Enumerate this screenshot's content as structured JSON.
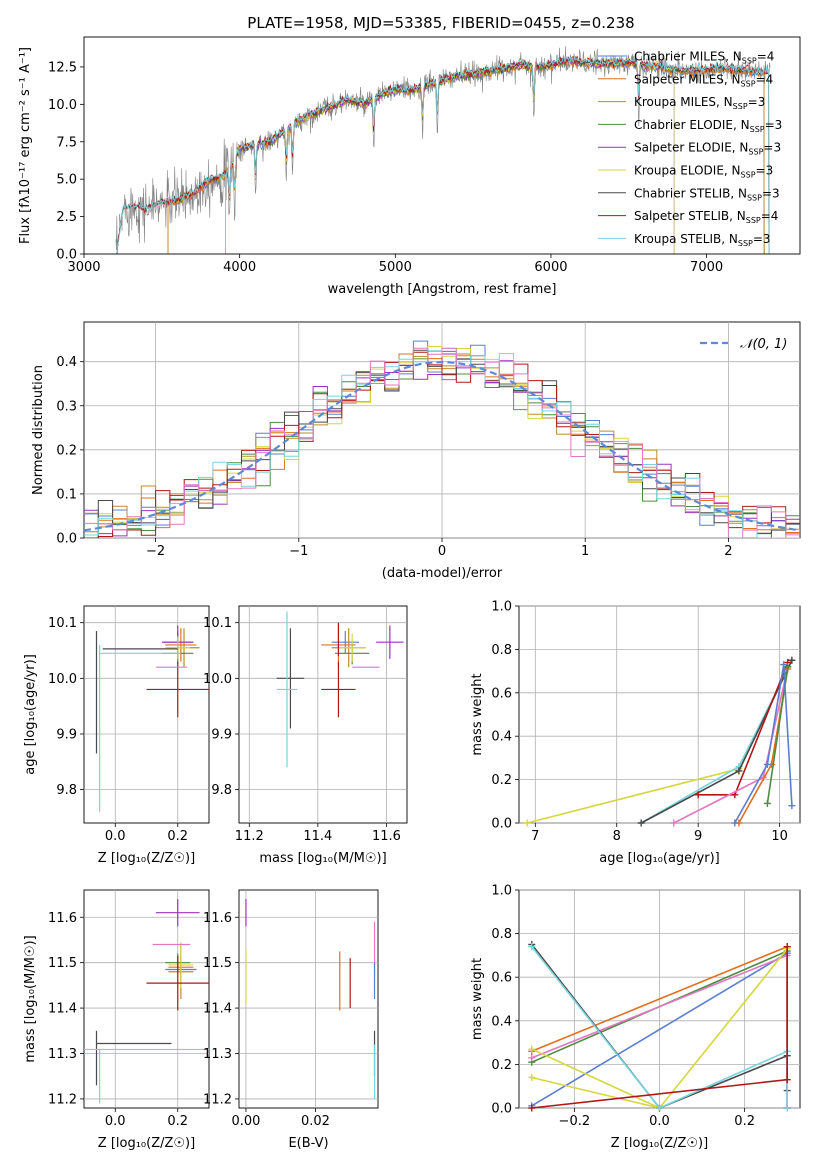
{
  "figure": {
    "title": "PLATE=1958, MJD=53385, FIBERID=0455, z=0.238"
  },
  "chart_data": [
    {
      "id": "spectrum",
      "type": "line",
      "xlabel": "wavelength [Angstrom, rest frame]",
      "ylabel": "Flux [fλ10⁻¹⁷ erg cm⁻² s⁻¹ A⁻¹]",
      "xlim": [
        3000,
        7600
      ],
      "ylim": [
        0,
        14.5
      ],
      "xticks": [
        3000,
        4000,
        5000,
        6000,
        7000
      ],
      "yticks": [
        0.0,
        2.5,
        5.0,
        7.5,
        10.0,
        12.5
      ],
      "grid": false,
      "legend_position": "top-right",
      "data_trend": {
        "x": [
          3210,
          3250,
          3300,
          3400,
          3500,
          3600,
          3700,
          3800,
          3900,
          3950,
          4000,
          4100,
          4200,
          4300,
          4400,
          4500,
          4600,
          4700,
          4800,
          4900,
          5000,
          5100,
          5200,
          5300,
          5400,
          5500,
          5600,
          5700,
          5800,
          5900,
          6000,
          6100,
          6200,
          6300,
          6400,
          6500,
          6600,
          6700,
          6800,
          6900,
          7000,
          7100,
          7200,
          7300,
          7400
        ],
        "y": [
          0.0,
          2.9,
          3.2,
          3.0,
          3.4,
          3.6,
          4.0,
          4.9,
          5.2,
          6.0,
          7.0,
          7.3,
          7.5,
          8.3,
          9.0,
          9.5,
          9.9,
          10.3,
          10.0,
          10.6,
          11.0,
          10.9,
          11.3,
          11.6,
          11.9,
          12.0,
          12.2,
          12.4,
          12.6,
          12.5,
          12.6,
          12.9,
          12.8,
          12.7,
          12.7,
          12.8,
          12.6,
          12.5,
          12.3,
          12.2,
          12.3,
          12.4,
          12.3,
          12.2,
          12.1
        ]
      },
      "series": [
        {
          "name": "Chabrier MILES, N",
          "sub": "SSP",
          "suffix": "=4",
          "color": "#5a7fd0",
          "start": 3540,
          "end": 7370
        },
        {
          "name": "Salpeter MILES, N",
          "sub": "SSP",
          "suffix": "=4",
          "color": "#e07020",
          "start": 3540,
          "end": 7370
        },
        {
          "name": "Kroupa MILES, N",
          "sub": "SSP",
          "suffix": "=3",
          "color": "#c08a2a",
          "start": 3540,
          "end": 7370
        },
        {
          "name": "Chabrier ELODIE, N",
          "sub": "SSP",
          "suffix": "=3",
          "color": "#4d8b40",
          "start": 3910,
          "end": 6790
        },
        {
          "name": "Salpeter ELODIE, N",
          "sub": "SSP",
          "suffix": "=3",
          "color": "#9b32c0",
          "start": 3910,
          "end": 6790
        },
        {
          "name": "Kroupa ELODIE, N",
          "sub": "SSP",
          "suffix": "=3",
          "color": "#d6d640",
          "start": 3910,
          "end": 6790
        },
        {
          "name": "Chabrier STELIB, N",
          "sub": "SSP",
          "suffix": "=3",
          "color": "#4a4a4a",
          "start": 3210,
          "end": 7400
        },
        {
          "name": "Salpeter STELIB, N",
          "sub": "SSP",
          "suffix": "=4",
          "color": "#b01818",
          "start": 3210,
          "end": 7400
        },
        {
          "name": "Kroupa STELIB, N",
          "sub": "SSP",
          "suffix": "=3",
          "color": "#79d3df",
          "start": 3210,
          "end": 7400
        }
      ],
      "observed_data_color": "#808080"
    },
    {
      "id": "residual-histogram",
      "type": "step",
      "xlabel": "(data-model)/error",
      "ylabel": "Normed distribution",
      "xlim": [
        -2.5,
        2.5
      ],
      "ylim": [
        0,
        0.49
      ],
      "xticks": [
        -2,
        -1,
        0,
        1,
        2
      ],
      "yticks": [
        0.0,
        0.1,
        0.2,
        0.3,
        0.4
      ],
      "grid": true,
      "legend_position": "top-right",
      "reference_curve": {
        "label": "𝒩(0, 1)",
        "color": "#5a8ad8",
        "mean": 0,
        "sigma": 1
      },
      "bin_edges": {
        "start": -2.5,
        "width": 0.1,
        "count": 50
      }
    },
    {
      "id": "age-vs-Z",
      "type": "errorbar",
      "xlabel": "Z [log₁₀(Z/Z☉)]",
      "ylabel": "age  [log₁₀(age/yr)]",
      "xlim": [
        -0.1,
        0.3
      ],
      "ylim": [
        9.74,
        10.13
      ],
      "xticks": [
        0.0,
        0.2
      ],
      "yticks": [
        9.8,
        9.9,
        10.0,
        10.1
      ],
      "grid": true,
      "points": [
        {
          "x": 0.2,
          "y": 10.065,
          "xerr": 0.05,
          "yerr": 0.02,
          "color": "#5a7fd0"
        },
        {
          "x": 0.21,
          "y": 10.06,
          "xerr": 0.05,
          "yerr": 0.03,
          "color": "#e07020"
        },
        {
          "x": 0.22,
          "y": 10.055,
          "xerr": 0.05,
          "yerr": 0.035,
          "color": "#c08a2a"
        },
        {
          "x": 0.2,
          "y": 10.045,
          "xerr": 0.05,
          "yerr": 0.02,
          "color": "#4d8b40"
        },
        {
          "x": 0.2,
          "y": 10.065,
          "xerr": 0.05,
          "yerr": 0.03,
          "color": "#9b32c0"
        },
        {
          "x": 0.2,
          "y": 10.055,
          "xerr": 0.04,
          "yerr": 0.02,
          "color": "#d6d640"
        },
        {
          "x": -0.06,
          "y": 9.975,
          "xerr": 0.0,
          "yerr": 0.11,
          "color": "#4a4a4a"
        },
        {
          "x": 0.2,
          "y": 9.98,
          "xerr": 0.1,
          "yerr": 0.05,
          "color": "#b01818"
        },
        {
          "x": -0.05,
          "y": 9.91,
          "xerr": 0.0,
          "yerr": 0.15,
          "color": "#79d3df"
        },
        {
          "x": 0.08,
          "y": 10.053,
          "xerr": 0.12,
          "yerr": 0.0,
          "color": "#4a4a4a"
        },
        {
          "x": 0.08,
          "y": 10.045,
          "xerr": 0.13,
          "yerr": 0.0,
          "color": "#79d3df"
        },
        {
          "x": 0.18,
          "y": 10.02,
          "xerr": 0.05,
          "yerr": 0.0,
          "color": "#e377c2"
        }
      ]
    },
    {
      "id": "age-vs-mass",
      "type": "errorbar",
      "xlabel": "mass [log₁₀(M/M☉)]",
      "ylabel": "",
      "xlim": [
        11.17,
        11.66
      ],
      "ylim": [
        9.74,
        10.13
      ],
      "xticks": [
        11.2,
        11.4,
        11.6
      ],
      "yticks": [
        9.8,
        9.9,
        10.0,
        10.1
      ],
      "grid": true,
      "points": [
        {
          "x": 11.48,
          "y": 10.065,
          "xerr": 0.04,
          "yerr": 0.02,
          "color": "#5a7fd0"
        },
        {
          "x": 11.46,
          "y": 10.06,
          "xerr": 0.05,
          "yerr": 0.04,
          "color": "#e07020"
        },
        {
          "x": 11.49,
          "y": 10.055,
          "xerr": 0.05,
          "yerr": 0.035,
          "color": "#c08a2a"
        },
        {
          "x": 11.5,
          "y": 10.045,
          "xerr": 0.05,
          "yerr": 0.02,
          "color": "#4d8b40"
        },
        {
          "x": 11.61,
          "y": 10.065,
          "xerr": 0.04,
          "yerr": 0.03,
          "color": "#9b32c0"
        },
        {
          "x": 11.5,
          "y": 10.055,
          "xerr": 0.04,
          "yerr": 0.025,
          "color": "#d6d640"
        },
        {
          "x": 11.32,
          "y": 10.0,
          "xerr": 0.04,
          "yerr": 0.09,
          "color": "#4a4a4a"
        },
        {
          "x": 11.46,
          "y": 9.98,
          "xerr": 0.05,
          "yerr": 0.05,
          "color": "#b01818"
        },
        {
          "x": 11.31,
          "y": 9.98,
          "xerr": 0.03,
          "yerr": 0.14,
          "color": "#79d3df"
        },
        {
          "x": 11.54,
          "y": 10.02,
          "xerr": 0.04,
          "yerr": 0.0,
          "color": "#e377c2"
        },
        {
          "x": 11.46,
          "y": 10.07,
          "xerr": 0.0,
          "yerr": 0.03,
          "color": "#b01818"
        }
      ]
    },
    {
      "id": "mass-weight-vs-age",
      "type": "line",
      "xlabel": "age  [log₁₀(age/yr)]",
      "ylabel": "mass weight",
      "xlim": [
        6.8,
        10.25
      ],
      "ylim": [
        0,
        1.0
      ],
      "xticks": [
        7,
        8,
        9,
        10
      ],
      "yticks": [
        0.0,
        0.2,
        0.4,
        0.6,
        0.8,
        1.0
      ],
      "grid": true,
      "series": [
        {
          "color": "#d6d640",
          "x": [
            6.9,
            9.5,
            10.15
          ],
          "y": [
            0.0,
            0.25,
            0.75
          ]
        },
        {
          "color": "#79d3df",
          "x": [
            8.3,
            9.5,
            10.15
          ],
          "y": [
            0.0,
            0.26,
            0.75
          ]
        },
        {
          "color": "#4a4a4a",
          "x": [
            8.3,
            9.5,
            10.15
          ],
          "y": [
            0.0,
            0.24,
            0.75
          ]
        },
        {
          "color": "#b01818",
          "x": [
            9.0,
            9.45,
            10.1
          ],
          "y": [
            0.13,
            0.13,
            0.74
          ]
        },
        {
          "color": "#e377c2",
          "x": [
            8.7,
            9.8,
            10.1
          ],
          "y": [
            0.0,
            0.21,
            0.72
          ]
        },
        {
          "color": "#e07020",
          "x": [
            9.5,
            9.9,
            10.1
          ],
          "y": [
            0.0,
            0.27,
            0.71
          ]
        },
        {
          "color": "#4d8b40",
          "x": [
            9.85,
            10.1
          ],
          "y": [
            0.09,
            0.72
          ]
        },
        {
          "color": "#5a7fd0",
          "x": [
            9.45,
            9.85,
            10.05,
            10.15
          ],
          "y": [
            0.0,
            0.27,
            0.73,
            0.08
          ]
        }
      ]
    },
    {
      "id": "mass-vs-Z",
      "type": "errorbar",
      "xlabel": "Z [log₁₀(Z/Z☉)]",
      "ylabel": "mass [log₁₀(M/M☉)]",
      "xlim": [
        -0.1,
        0.3
      ],
      "ylim": [
        11.18,
        11.66
      ],
      "xticks": [
        0.0,
        0.2
      ],
      "yticks": [
        11.2,
        11.3,
        11.4,
        11.5,
        11.6
      ],
      "grid": true,
      "points": [
        {
          "x": 0.21,
          "y": 11.485,
          "xerr": 0.05,
          "yerr": 0.02,
          "color": "#5a7fd0"
        },
        {
          "x": 0.21,
          "y": 11.49,
          "xerr": 0.04,
          "yerr": 0.03,
          "color": "#e07020"
        },
        {
          "x": 0.21,
          "y": 11.48,
          "xerr": 0.04,
          "yerr": 0.06,
          "color": "#c08a2a"
        },
        {
          "x": 0.2,
          "y": 11.5,
          "xerr": 0.04,
          "yerr": 0.02,
          "color": "#4d8b40"
        },
        {
          "x": 0.2,
          "y": 11.61,
          "xerr": 0.07,
          "yerr": 0.03,
          "color": "#9b32c0"
        },
        {
          "x": 0.21,
          "y": 11.495,
          "xerr": 0.04,
          "yerr": 0.05,
          "color": "#d6d640"
        },
        {
          "x": -0.06,
          "y": 11.29,
          "xerr": 0.0,
          "yerr": 0.06,
          "color": "#4a4a4a"
        },
        {
          "x": 0.2,
          "y": 11.455,
          "xerr": 0.1,
          "yerr": 0.06,
          "color": "#b01818"
        },
        {
          "x": -0.05,
          "y": 11.25,
          "xerr": 0.0,
          "yerr": 0.06,
          "color": "#79d3df"
        },
        {
          "x": 0.06,
          "y": 11.322,
          "xerr": 0.12,
          "yerr": 0.0,
          "color": "#4a4a4a"
        },
        {
          "x": 0.1,
          "y": 11.309,
          "xerr": 0.2,
          "yerr": 0.0,
          "color": "#79d3df"
        },
        {
          "x": 0.18,
          "y": 11.54,
          "xerr": 0.06,
          "yerr": 0.0,
          "color": "#e377c2"
        }
      ]
    },
    {
      "id": "mass-vs-EBV",
      "type": "errorbar",
      "xlabel": "E(B-V)",
      "ylabel": "",
      "xlim": [
        -0.002,
        0.038
      ],
      "ylim": [
        11.18,
        11.66
      ],
      "xticks": [
        0.0,
        0.02
      ],
      "yticks": [
        11.2,
        11.3,
        11.4,
        11.5,
        11.6
      ],
      "grid": true,
      "points": [
        {
          "x": 0.0,
          "y": 11.61,
          "xerr": 0.0,
          "yerr": 0.03,
          "color": "#9b32c0"
        },
        {
          "x": 0.0,
          "y": 11.47,
          "xerr": 0.0,
          "yerr": 0.06,
          "color": "#d6d640"
        },
        {
          "x": 0.027,
          "y": 11.46,
          "xerr": 0.0,
          "yerr": 0.065,
          "color": "#e07020"
        },
        {
          "x": 0.03,
          "y": 11.455,
          "xerr": 0.0,
          "yerr": 0.055,
          "color": "#b01818"
        },
        {
          "x": 0.037,
          "y": 11.53,
          "xerr": 0.0,
          "yerr": 0.06,
          "color": "#e377c2"
        },
        {
          "x": 0.037,
          "y": 11.46,
          "xerr": 0.0,
          "yerr": 0.04,
          "color": "#5a7fd0"
        },
        {
          "x": 0.037,
          "y": 11.3,
          "xerr": 0.0,
          "yerr": 0.05,
          "color": "#4a4a4a"
        },
        {
          "x": 0.037,
          "y": 11.26,
          "xerr": 0.0,
          "yerr": 0.06,
          "color": "#79d3df"
        }
      ]
    },
    {
      "id": "mass-weight-vs-Z",
      "type": "line",
      "xlabel": "Z [log₁₀(Z/Z☉)]",
      "ylabel": "mass weight",
      "xlim": [
        -0.33,
        0.33
      ],
      "ylim": [
        0,
        1.0
      ],
      "xticks": [
        -0.2,
        0.0,
        0.2
      ],
      "yticks": [
        0.0,
        0.2,
        0.4,
        0.6,
        0.8,
        1.0
      ],
      "grid": true,
      "series": [
        {
          "color": "#e07020",
          "x": [
            -0.3,
            0.3,
            0.3
          ],
          "y": [
            0.26,
            0.74,
            0.0
          ]
        },
        {
          "color": "#5a7fd0",
          "x": [
            -0.3,
            0.3,
            0.3
          ],
          "y": [
            0.01,
            0.71,
            0.0
          ]
        },
        {
          "color": "#4d8b40",
          "x": [
            -0.3,
            0.3,
            0.3
          ],
          "y": [
            0.21,
            0.72,
            0.0
          ]
        },
        {
          "color": "#e377c2",
          "x": [
            -0.3,
            0.3,
            0.3
          ],
          "y": [
            0.23,
            0.7,
            0.0
          ]
        },
        {
          "color": "#d6d640",
          "x": [
            -0.3,
            0.0,
            0.3
          ],
          "y": [
            0.27,
            0.0,
            0.73
          ]
        },
        {
          "color": "#d6d640",
          "x": [
            -0.3,
            0.0
          ],
          "y": [
            0.14,
            0.0
          ]
        },
        {
          "color": "#4a4a4a",
          "x": [
            -0.3,
            0.0,
            0.3,
            0.3
          ],
          "y": [
            0.75,
            0.0,
            0.24,
            0.08
          ]
        },
        {
          "color": "#79d3df",
          "x": [
            -0.3,
            0.0,
            0.3,
            0.3
          ],
          "y": [
            0.74,
            0.0,
            0.26,
            0.0
          ]
        },
        {
          "color": "#b01818",
          "x": [
            -0.3,
            0.3,
            0.3
          ],
          "y": [
            0.0,
            0.13,
            0.74
          ]
        }
      ]
    }
  ]
}
